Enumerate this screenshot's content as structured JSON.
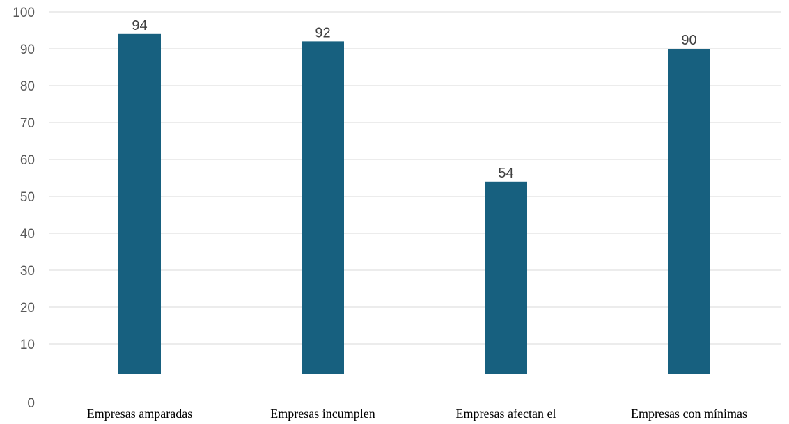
{
  "chart_data": {
    "type": "bar",
    "categories": [
      "Empresas amparadas",
      "Empresas incumplen",
      "Empresas afectan el",
      "Empresas con mínimas"
    ],
    "values": [
      94,
      92,
      54,
      90
    ],
    "title": "",
    "xlabel": "",
    "ylabel": "",
    "ylim": [
      0,
      100
    ],
    "yticks": [
      0,
      10,
      20,
      30,
      40,
      50,
      60,
      70,
      80,
      90,
      100
    ],
    "grid": true,
    "legend": "none",
    "bar_color": "#17607f",
    "data_labels": true
  }
}
